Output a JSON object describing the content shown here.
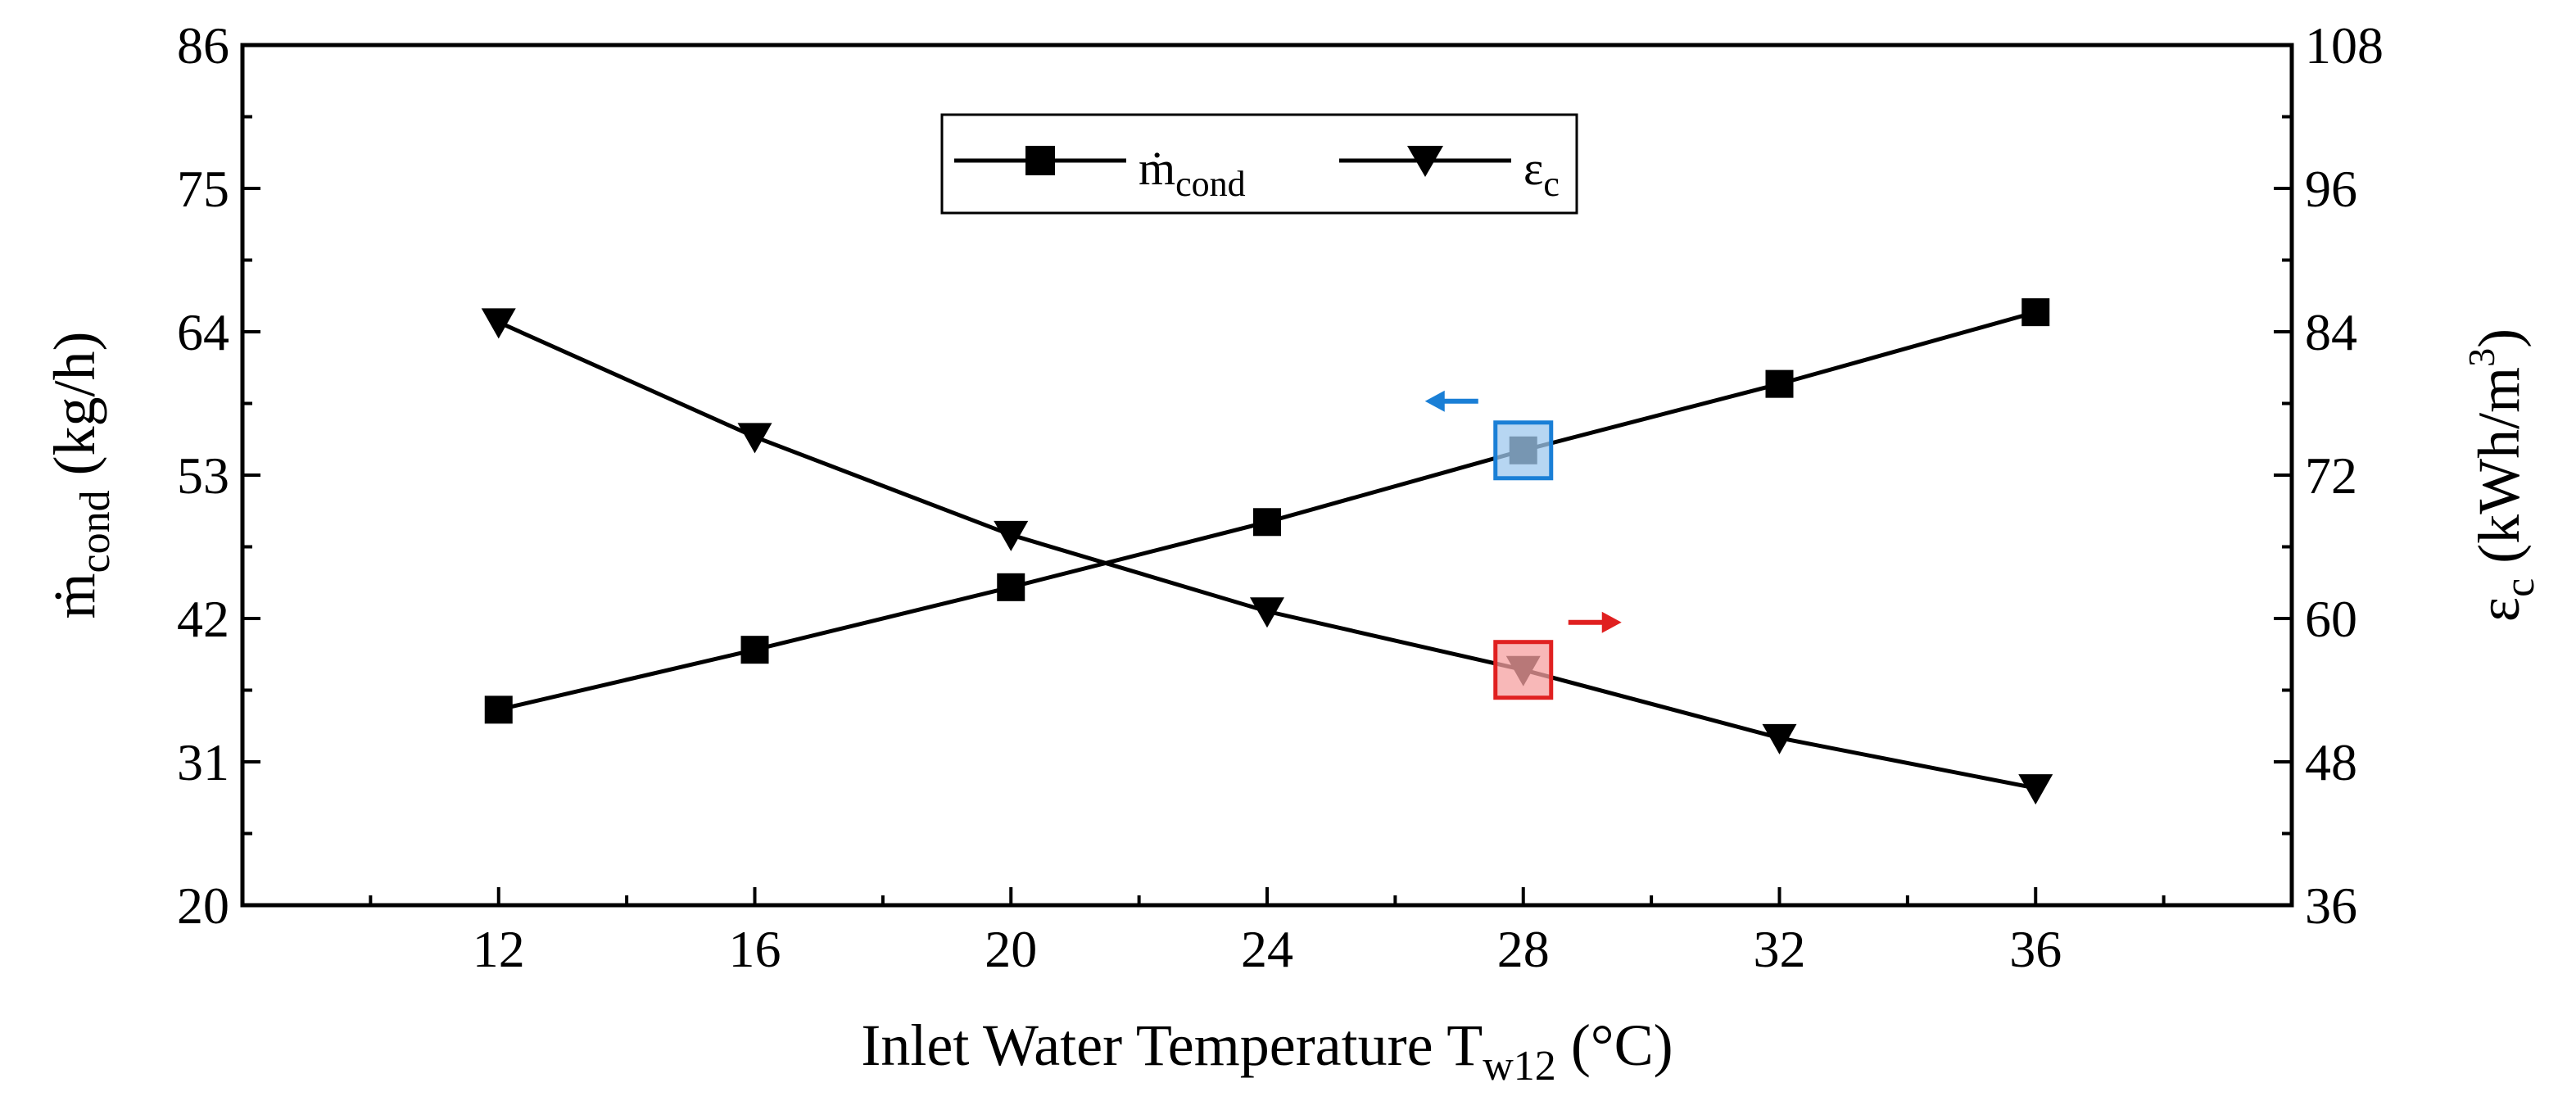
{
  "chart_data": {
    "type": "line",
    "title": "",
    "x": [
      12,
      16,
      20,
      24,
      28,
      32,
      36
    ],
    "x_ticks": [
      12,
      16,
      20,
      24,
      28,
      32,
      36
    ],
    "xlim": [
      8,
      40
    ],
    "xlabel": {
      "main": "Inlet Water Temperature T",
      "sub": "w12",
      "unit": " (°C)"
    },
    "left_axis": {
      "ylim": [
        20,
        86
      ],
      "ticks": [
        20,
        31,
        42,
        53,
        64,
        75,
        86
      ],
      "label": {
        "symbol": "ṁ",
        "sub": "cond",
        "unit": " (kg/h)"
      }
    },
    "right_axis": {
      "ylim": [
        36,
        108
      ],
      "ticks": [
        36,
        48,
        60,
        72,
        84,
        96,
        108
      ],
      "label": {
        "symbol": "ε",
        "sub": "c",
        "unit_prefix": " (kWh/m",
        "sup": "3",
        "unit_suffix": ")"
      }
    },
    "series": [
      {
        "name": "ṁ",
        "name_sub": "cond",
        "axis": "left",
        "marker": "square",
        "values": [
          35.0,
          39.6,
          44.4,
          49.4,
          54.9,
          60.0,
          65.5
        ]
      },
      {
        "name": "ε",
        "name_sub": "c",
        "axis": "right",
        "marker": "triangle-down",
        "values": [
          84.8,
          75.2,
          67.0,
          60.6,
          55.7,
          50.0,
          45.8
        ]
      }
    ],
    "legend": {
      "position": "top-center",
      "border": true
    },
    "highlights": [
      {
        "series": 0,
        "x": 28,
        "color": "#1a7fd6",
        "fill": "#9fc8ee",
        "arrow": "left"
      },
      {
        "series": 1,
        "x": 28,
        "color": "#e02020",
        "fill": "#f5a0a0",
        "arrow": "right"
      }
    ],
    "grid": false
  }
}
